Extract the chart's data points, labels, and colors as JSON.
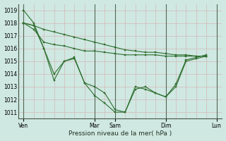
{
  "xlabel": "Pression niveau de la mer( hPa )",
  "bg_color": "#cfe8e2",
  "grid_color_major": "#d4b8b8",
  "grid_color_minor": "#d4c8c8",
  "line_color": "#2d6e2d",
  "ylim": [
    1010.5,
    1019.5
  ],
  "yticks": [
    1011,
    1012,
    1013,
    1014,
    1015,
    1016,
    1017,
    1018,
    1019
  ],
  "xlim_max": 20,
  "xtick_labels": [
    "Ven",
    "Mar",
    "Sam",
    "Dim",
    "Lun"
  ],
  "xtick_positions": [
    0,
    7,
    9,
    14,
    19
  ],
  "vline_positions": [
    0,
    7,
    9,
    14,
    19
  ],
  "series": [
    [
      1019.0,
      1018.0,
      1016.0,
      1014.0,
      1015.0,
      1015.2,
      1013.3,
      1013.0,
      1012.5,
      1011.2,
      1011.0,
      1013.0,
      1012.8,
      1012.5,
      1012.2,
      1013.2,
      1015.1,
      1015.3,
      1015.5
    ],
    [
      1018.0,
      1017.8,
      1016.0,
      1013.5,
      1015.0,
      1015.3,
      1013.3,
      1012.3,
      1011.7,
      1011.0,
      1011.0,
      1012.8,
      1013.0,
      1012.5,
      1012.2,
      1013.0,
      1015.0,
      1015.2,
      1015.4
    ],
    [
      1018.0,
      1017.5,
      1016.5,
      1016.3,
      1016.2,
      1016.0,
      1015.8,
      1015.8,
      1015.7,
      1015.6,
      1015.5,
      1015.5,
      1015.5,
      1015.5,
      1015.4,
      1015.4,
      1015.4,
      1015.4,
      1015.4
    ],
    [
      1018.0,
      1017.8,
      1017.5,
      1017.3,
      1017.1,
      1016.9,
      1016.7,
      1016.5,
      1016.3,
      1016.1,
      1015.9,
      1015.8,
      1015.7,
      1015.7,
      1015.6,
      1015.5,
      1015.5,
      1015.4,
      1015.4
    ]
  ],
  "n_points": 19,
  "ytick_fontsize": 5.5,
  "xtick_fontsize": 5.5,
  "xlabel_fontsize": 6.5,
  "linewidth": 0.8,
  "markersize": 2.0
}
